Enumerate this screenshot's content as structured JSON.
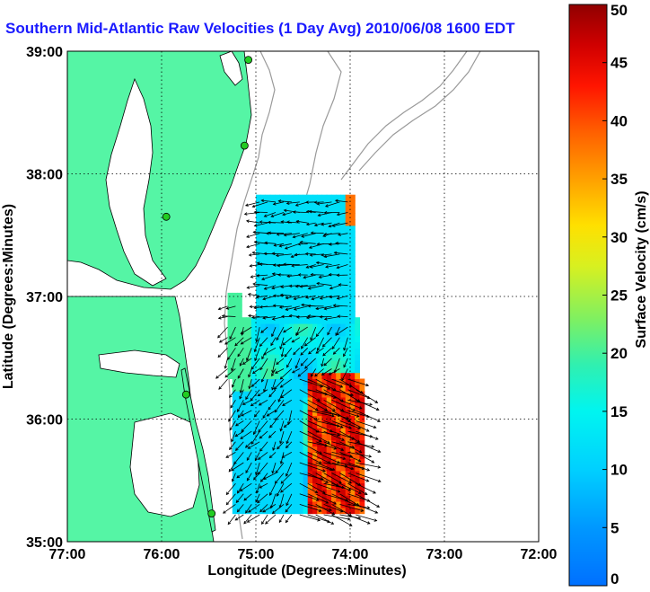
{
  "title": "Southern Mid-Atlantic Raw Velocities (1 Day Avg) 2010/06/08 1600 EDT",
  "axes": {
    "xlabel": "Longitude (Degrees:Minutes)",
    "ylabel": "Latitude (Degrees:Minutes)",
    "x_ticks": [
      "77:00",
      "76:00",
      "75:00",
      "74:00",
      "73:00",
      "72:00"
    ],
    "y_ticks": [
      "39:00",
      "38:00",
      "37:00",
      "36:00",
      "35:00"
    ]
  },
  "colorbar": {
    "label": "Surface Velocity (cm/s)",
    "ticks": [
      "0",
      "5",
      "10",
      "15",
      "20",
      "25",
      "30",
      "35",
      "40",
      "45",
      "50"
    ],
    "min": 0,
    "max": 50
  },
  "colors": {
    "land": "#55f5a5",
    "water": "#ffffff",
    "title": "#1a1aff",
    "coast": "#000000",
    "bathymetry": "#9a9a9a",
    "station": "#22cc22"
  },
  "chart_data": {
    "type": "heatmap",
    "x_range": [
      -77.0,
      -72.0
    ],
    "y_range": [
      35.0,
      39.0
    ],
    "grid": true,
    "color_scale": "jet",
    "units": "cm/s",
    "stations": [
      {
        "lon": -75.08,
        "lat": 38.93
      },
      {
        "lon": -75.12,
        "lat": 38.23
      },
      {
        "lon": -75.95,
        "lat": 37.65
      },
      {
        "lon": -75.74,
        "lat": 36.2
      },
      {
        "lon": -75.47,
        "lat": 35.23
      }
    ],
    "speed_regions": [
      {
        "name": "northern cyan patch",
        "lon": [
          -75.03,
          -74.0
        ],
        "lat": [
          36.75,
          37.78
        ],
        "speed": 12
      },
      {
        "name": "southern cyan patch",
        "lon": [
          -75.27,
          -74.55
        ],
        "lat": [
          35.2,
          36.3
        ],
        "speed": 11
      },
      {
        "name": "inshore green band",
        "lon": [
          -75.32,
          -75.1
        ],
        "lat": [
          36.2,
          37.0
        ],
        "speed": 20
      },
      {
        "name": "offshore jet (Gulf Stream)",
        "lon": [
          -74.5,
          -73.9
        ],
        "lat": [
          35.4,
          36.3
        ],
        "speed": 45
      }
    ]
  }
}
